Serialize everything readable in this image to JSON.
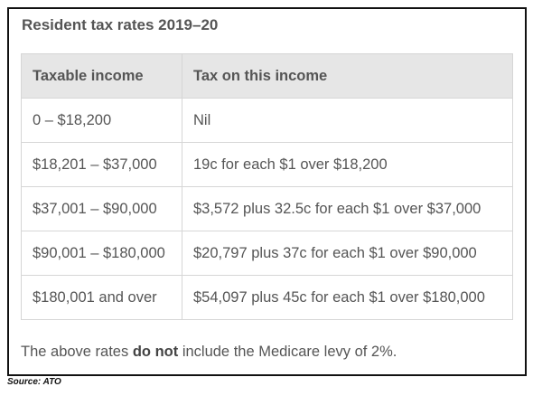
{
  "title": "Resident tax rates 2019–20",
  "table": {
    "header": [
      "Taxable income",
      "Tax on this income"
    ],
    "rows": [
      [
        "0 – $18,200",
        "Nil"
      ],
      [
        "$18,201 – $37,000",
        "19c for each $1 over $18,200"
      ],
      [
        "$37,001 – $90,000",
        "$3,572 plus 32.5c for each $1 over $37,000"
      ],
      [
        "$90,001 – $180,000",
        "$20,797 plus 37c for each $1 over $90,000"
      ],
      [
        "$180,001 and over",
        "$54,097 plus 45c for each $1 over $180,000"
      ]
    ]
  },
  "note": {
    "before": "The above rates ",
    "emphasis": "do not",
    "after": " include the Medicare levy of 2%."
  },
  "source": "Source: ATO"
}
